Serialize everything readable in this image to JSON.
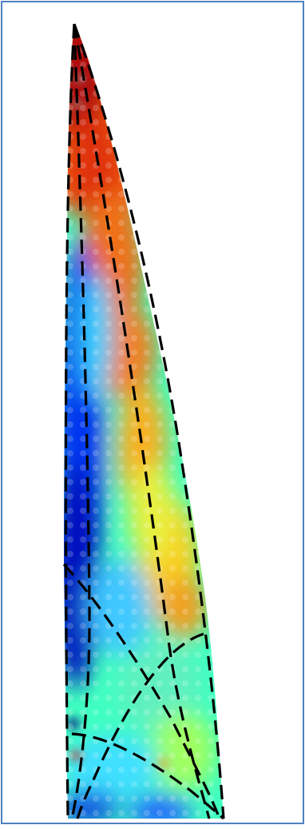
{
  "figure": {
    "frame_color": "#4f81bd",
    "background_color": "#ffffff",
    "fill_type": "jet-colormap heat map",
    "colormap": [
      "#00008f",
      "#0000ff",
      "#0080ff",
      "#00ffff",
      "#80ff80",
      "#ffff00",
      "#ff8000",
      "#ff0000",
      "#800000"
    ],
    "outline_style": "dashed black lines",
    "line_color": "#000000"
  }
}
